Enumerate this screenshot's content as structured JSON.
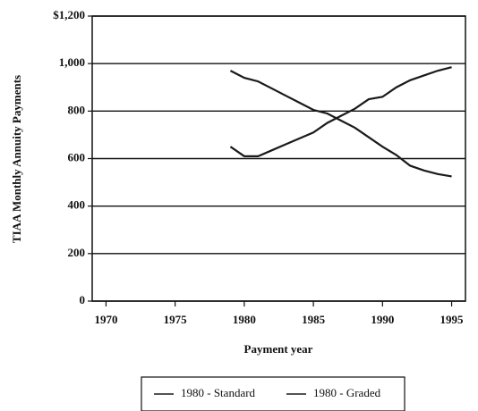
{
  "chart_data": {
    "type": "line",
    "x_label": "Payment year",
    "y_label": "TIAA Monthly Annuity Payments",
    "x": [
      1979,
      1980,
      1981,
      1982,
      1983,
      1984,
      1985,
      1986,
      1987,
      1988,
      1989,
      1990,
      1991,
      1992,
      1993,
      1994,
      1995
    ],
    "series": [
      {
        "name": "1980 - Standard",
        "color": "#1a1a1a",
        "values": [
          970,
          940,
          925,
          895,
          865,
          835,
          805,
          790,
          760,
          730,
          690,
          650,
          615,
          570,
          550,
          535,
          525
        ]
      },
      {
        "name": "1980 - Graded",
        "color": "#1a1a1a",
        "values": [
          650,
          610,
          610,
          635,
          660,
          685,
          710,
          750,
          780,
          810,
          850,
          860,
          900,
          930,
          950,
          970,
          985
        ]
      }
    ],
    "xlim": [
      1969,
      1996
    ],
    "xticks": [
      1970,
      1975,
      1980,
      1985,
      1990,
      1995
    ],
    "ylim": [
      0,
      1200
    ],
    "yticks": [
      0,
      200,
      400,
      600,
      800,
      {
        "value": 1000,
        "label": "1,000"
      },
      {
        "value": 1200,
        "label": "$1,200"
      }
    ],
    "grid": true,
    "legend": "bottom"
  }
}
